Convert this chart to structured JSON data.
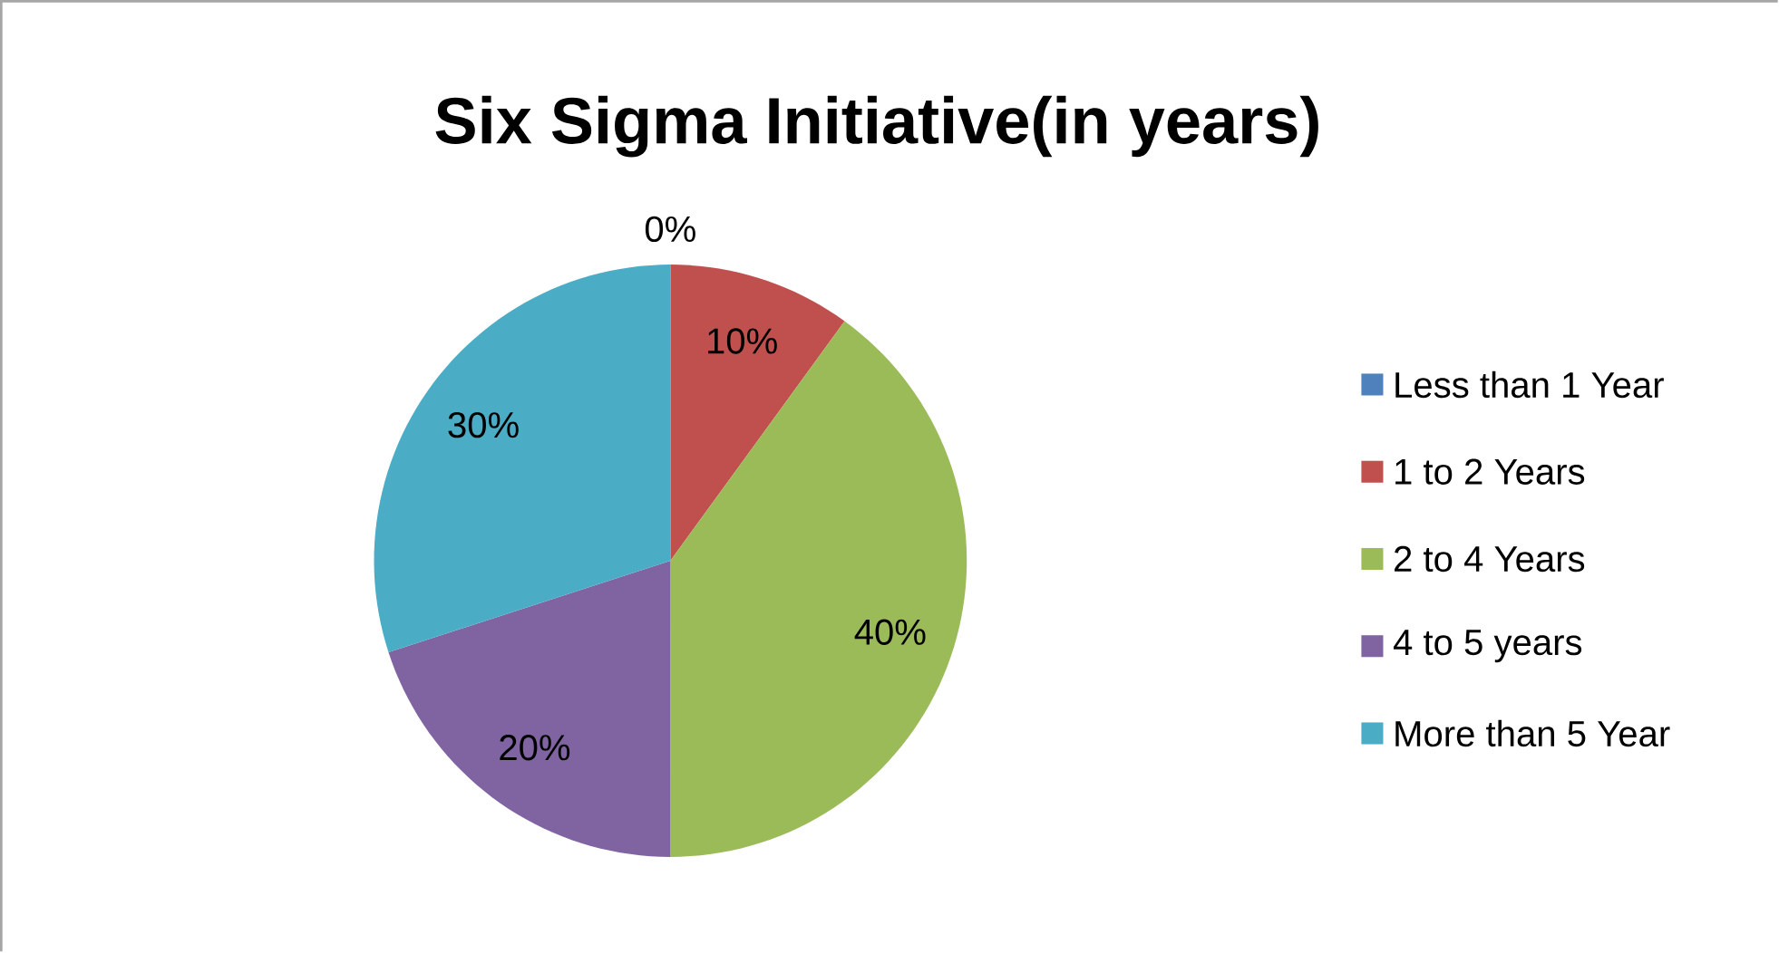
{
  "chart_data": {
    "type": "pie",
    "title": "Six Sigma Initiative(in years)",
    "categories": [
      "Less than 1 Year",
      "1 to 2 Years",
      "2 to 4 Years",
      "4 to 5 years",
      "More than 5 Year"
    ],
    "values": [
      0,
      10,
      40,
      20,
      30
    ],
    "colors": [
      "#4f81bd",
      "#c0504d",
      "#9bbb59",
      "#8064a2",
      "#4bacc6"
    ],
    "value_labels": [
      "0%",
      "10%",
      "40%",
      "20%",
      "30%"
    ],
    "legend": "right"
  }
}
